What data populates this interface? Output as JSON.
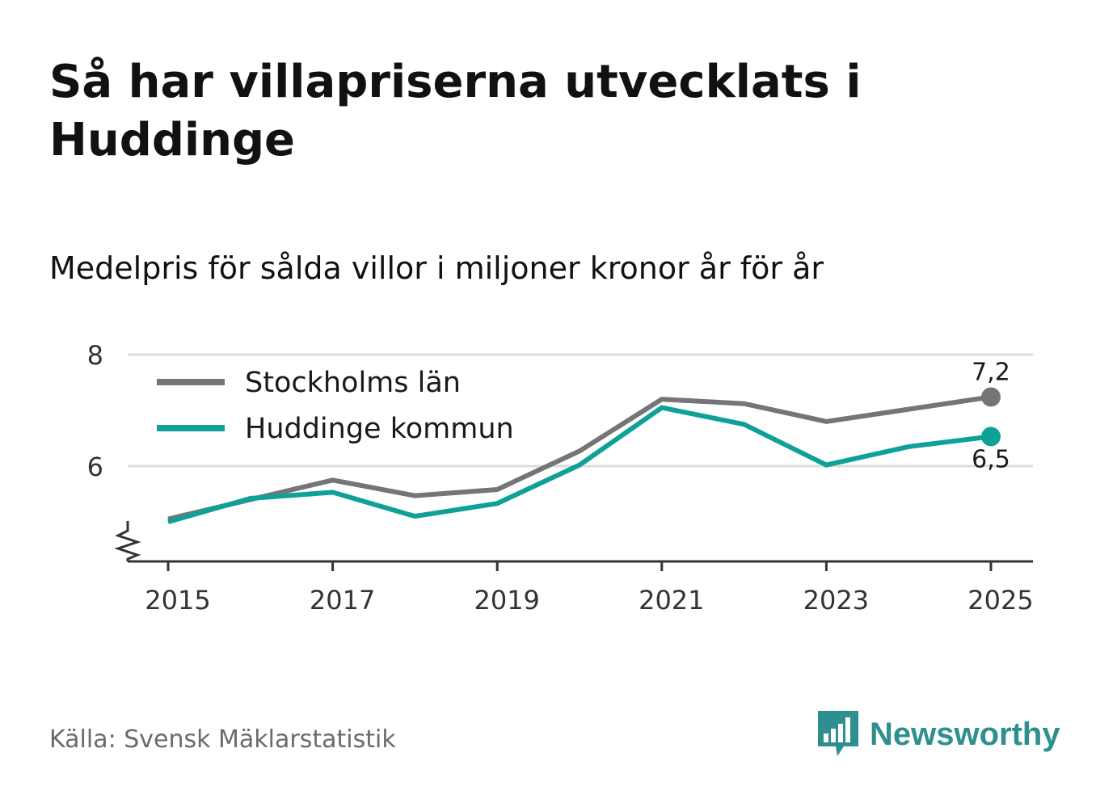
{
  "title": "Så har villapriserna utvecklats i Huddinge",
  "subtitle": "Medelpris för sålda villor i miljoner kronor år för år",
  "source": "Källa: Svensk Mäklarstatistik",
  "brand": {
    "name": "Newsworthy",
    "icon": "bar-chart-speech-bubble-icon",
    "color": "#2e8f8f"
  },
  "chart_data": {
    "type": "line",
    "title": "Så har villapriserna utvecklats i Huddinge",
    "ylabel": "Medelpris för sålda villor i miljoner kronor år för år",
    "xlabel": "",
    "x": [
      2015,
      2016,
      2017,
      2018,
      2019,
      2020,
      2021,
      2022,
      2023,
      2024,
      2025
    ],
    "xticks": [
      "2015",
      "2017",
      "2019",
      "2021",
      "2023",
      "2025"
    ],
    "yticks": [
      "6",
      "8"
    ],
    "ylim": [
      4.3,
      8
    ],
    "axis_break": true,
    "grid": true,
    "legend_position": "top-left",
    "series": [
      {
        "name": "Stockholms län",
        "color": "#757479",
        "values": [
          5.05,
          5.4,
          5.75,
          5.47,
          5.58,
          6.27,
          7.2,
          7.12,
          6.8,
          7.02,
          7.24
        ],
        "end_label": "7,2"
      },
      {
        "name": "Huddinge kommun",
        "color": "#0fa197",
        "values": [
          5.0,
          5.42,
          5.53,
          5.1,
          5.33,
          6.02,
          7.05,
          6.75,
          6.02,
          6.35,
          6.53
        ],
        "end_label": "6,5"
      }
    ]
  }
}
